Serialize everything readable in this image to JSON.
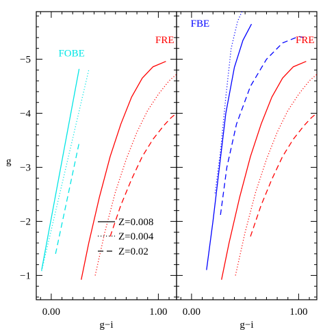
{
  "chart_data": {
    "type": "line",
    "ylabel": "g",
    "panels": [
      {
        "name": "left",
        "xlabel": "g−i",
        "xlim": [
          -0.14,
          1.17
        ],
        "ylim": [
          -0.55,
          -5.88
        ],
        "x_ticks": [
          0,
          1
        ],
        "x_tick_labels": [
          "0.00",
          "1.00"
        ],
        "y_ticks": [
          -1,
          -2,
          -3,
          -4,
          -5
        ],
        "y_tick_labels": [
          "−1",
          "−2",
          "−3",
          "−4",
          "−5"
        ],
        "annotations": [
          {
            "text": "FOBE",
            "color": "#00e5e5",
            "x": 0.19,
            "y": -5.05
          },
          {
            "text": "FRE",
            "color": "#ff0000",
            "x": 1.06,
            "y": -5.3
          }
        ],
        "series": [
          {
            "color": "#00e5e5",
            "style": "solid",
            "points": [
              [
                -0.09,
                -1.1
              ],
              [
                0.26,
                -4.82
              ]
            ]
          },
          {
            "color": "#00e5e5",
            "style": "dotted",
            "points": [
              [
                -0.09,
                -1.08
              ],
              [
                0.35,
                -4.8
              ]
            ]
          },
          {
            "color": "#00e5e5",
            "style": "dashed",
            "points": [
              [
                0.04,
                -1.4
              ],
              [
                0.26,
                -3.45
              ]
            ]
          },
          {
            "color": "#ff0000",
            "style": "solid",
            "points": [
              [
                0.28,
                -0.92
              ],
              [
                0.35,
                -1.6
              ],
              [
                0.45,
                -2.45
              ],
              [
                0.55,
                -3.2
              ],
              [
                0.65,
                -3.8
              ],
              [
                0.75,
                -4.3
              ],
              [
                0.85,
                -4.65
              ],
              [
                0.95,
                -4.86
              ],
              [
                1.07,
                -4.96
              ]
            ]
          },
          {
            "color": "#ff0000",
            "style": "dotted",
            "points": [
              [
                0.41,
                -1.0
              ],
              [
                0.5,
                -1.8
              ],
              [
                0.6,
                -2.55
              ],
              [
                0.7,
                -3.15
              ],
              [
                0.8,
                -3.65
              ],
              [
                0.9,
                -4.05
              ],
              [
                1.0,
                -4.35
              ],
              [
                1.1,
                -4.6
              ],
              [
                1.17,
                -4.72
              ]
            ]
          },
          {
            "color": "#ff0000",
            "style": "dashed",
            "points": [
              [
                0.55,
                -1.72
              ],
              [
                0.65,
                -2.3
              ],
              [
                0.75,
                -2.78
              ],
              [
                0.85,
                -3.2
              ],
              [
                0.95,
                -3.52
              ],
              [
                1.05,
                -3.77
              ],
              [
                1.12,
                -3.92
              ],
              [
                1.17,
                -4.0
              ]
            ]
          }
        ]
      },
      {
        "name": "right",
        "xlabel": "g−i",
        "xlim": [
          -0.14,
          1.17
        ],
        "ylim": [
          -0.55,
          -5.88
        ],
        "x_ticks": [
          0,
          1
        ],
        "x_tick_labels": [
          "0.00",
          "1.00"
        ],
        "y_ticks": [
          -1,
          -2,
          -3,
          -4,
          -5
        ],
        "y_tick_labels": [],
        "annotations": [
          {
            "text": "FBE",
            "color": "#0000ff",
            "x": 0.08,
            "y": -5.6
          },
          {
            "text": "FRE",
            "color": "#ff0000",
            "x": 1.06,
            "y": -5.3
          }
        ],
        "series": [
          {
            "color": "#0000ff",
            "style": "solid",
            "points": [
              [
                0.14,
                -1.1
              ],
              [
                0.2,
                -2.0
              ],
              [
                0.26,
                -3.0
              ],
              [
                0.32,
                -4.0
              ],
              [
                0.4,
                -4.85
              ],
              [
                0.48,
                -5.35
              ],
              [
                0.56,
                -5.65
              ]
            ]
          },
          {
            "color": "#0000ff",
            "style": "dotted",
            "points": [
              [
                0.22,
                -2.52
              ],
              [
                0.27,
                -3.3
              ],
              [
                0.32,
                -4.3
              ],
              [
                0.37,
                -5.2
              ],
              [
                0.43,
                -5.7
              ],
              [
                0.47,
                -5.88
              ]
            ]
          },
          {
            "color": "#0000ff",
            "style": "dashed",
            "points": [
              [
                0.27,
                -2.12
              ],
              [
                0.33,
                -3.0
              ],
              [
                0.42,
                -3.8
              ],
              [
                0.55,
                -4.5
              ],
              [
                0.7,
                -5.0
              ],
              [
                0.85,
                -5.3
              ],
              [
                1.0,
                -5.42
              ],
              [
                1.05,
                -5.4
              ]
            ]
          },
          {
            "color": "#ff0000",
            "style": "solid",
            "points": [
              [
                0.28,
                -0.92
              ],
              [
                0.35,
                -1.6
              ],
              [
                0.45,
                -2.45
              ],
              [
                0.55,
                -3.2
              ],
              [
                0.65,
                -3.8
              ],
              [
                0.75,
                -4.3
              ],
              [
                0.85,
                -4.65
              ],
              [
                0.95,
                -4.86
              ],
              [
                1.07,
                -4.96
              ]
            ]
          },
          {
            "color": "#ff0000",
            "style": "dotted",
            "points": [
              [
                0.41,
                -1.0
              ],
              [
                0.5,
                -1.8
              ],
              [
                0.6,
                -2.55
              ],
              [
                0.7,
                -3.15
              ],
              [
                0.8,
                -3.65
              ],
              [
                0.9,
                -4.05
              ],
              [
                1.0,
                -4.35
              ],
              [
                1.1,
                -4.6
              ],
              [
                1.17,
                -4.72
              ]
            ]
          },
          {
            "color": "#ff0000",
            "style": "dashed",
            "points": [
              [
                0.55,
                -1.72
              ],
              [
                0.65,
                -2.3
              ],
              [
                0.75,
                -2.78
              ],
              [
                0.85,
                -3.2
              ],
              [
                0.95,
                -3.52
              ],
              [
                1.05,
                -3.77
              ],
              [
                1.12,
                -3.92
              ],
              [
                1.17,
                -4.0
              ]
            ]
          }
        ]
      }
    ],
    "legend": {
      "placement": "lower-left-inside",
      "entries": [
        {
          "label": "Z=0.008",
          "style": "solid"
        },
        {
          "label": "Z=0.004",
          "style": "dotted"
        },
        {
          "label": "Z=0.02",
          "style": "dashed"
        }
      ]
    }
  }
}
